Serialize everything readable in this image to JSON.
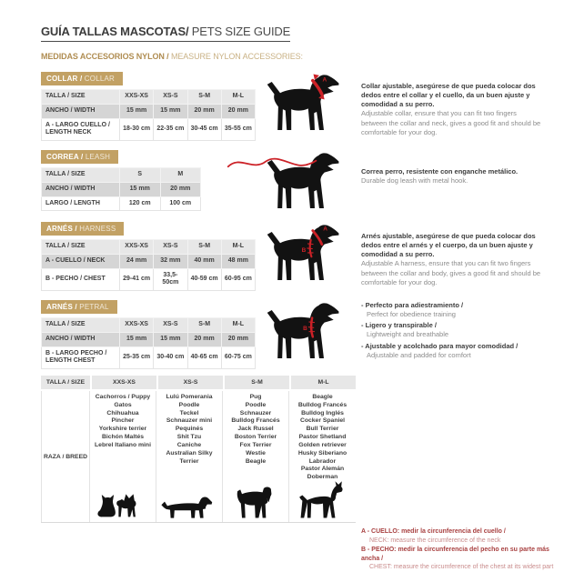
{
  "header": {
    "title_es": "GUÍA TALLAS MASCOTAS/",
    "title_en": " PETS SIZE GUIDE",
    "subtitle_es": "MEDIDAS ACCESORIOS NYLON / ",
    "subtitle_en": "MEASURE NYLON ACCESSORIES:"
  },
  "colors": {
    "gold": "#c2a164",
    "marker_red": "#cc2127",
    "note_red": "#a84040",
    "silhouette_black": "#121212"
  },
  "sections": [
    {
      "badge_es": "COLLAR / ",
      "badge_en": "COLLAR",
      "table": {
        "header": [
          "TALLA / SIZE",
          "XXS-XS",
          "XS-S",
          "S-M",
          "M-L"
        ],
        "rows": [
          {
            "label": "ANCHO / WIDTH",
            "values": [
              "15 mm",
              "15 mm",
              "20 mm",
              "20 mm"
            ]
          },
          {
            "label": "A - LARGO CUELLO / LENGTH NECK",
            "values": [
              "18-30 cm",
              "22-35 cm",
              "30-45 cm",
              "35-55 cm"
            ]
          }
        ]
      },
      "description_es": "Collar ajustable, asegúrese de que pueda colocar dos dedos entre el collar y el cuello, da un buen ajuste y comodidad a su perro.",
      "description_en": "Adjustable collar, ensure that you can fit two fingers between the collar and neck, gives a good fit and should be comfortable for your dog."
    },
    {
      "badge_es": "CORREA / ",
      "badge_en": "LEASH",
      "table": {
        "header": [
          "TALLA / SIZE",
          "S",
          "M"
        ],
        "rows": [
          {
            "label": "ANCHO / WIDTH",
            "values": [
              "15 mm",
              "20 mm"
            ]
          },
          {
            "label": "LARGO / LENGTH",
            "values": [
              "120 cm",
              "100 cm"
            ]
          }
        ]
      },
      "description_es": "Correa perro, resistente con enganche metálico.",
      "description_en": "Durable dog leash with metal hook."
    },
    {
      "badge_es": "ARNÉS / ",
      "badge_en": "HARNESS",
      "table": {
        "header": [
          "TALLA / SIZE",
          "XXS-XS",
          "XS-S",
          "S-M",
          "M-L"
        ],
        "rows": [
          {
            "label": "A - CUELLO / NECK",
            "values": [
              "24 mm",
              "32 mm",
              "40 mm",
              "48 mm"
            ]
          },
          {
            "label": "B - PECHO / CHEST",
            "values": [
              "29-41 cm",
              "33,5-50cm",
              "40-59 cm",
              "60-95 cm"
            ]
          }
        ]
      },
      "description_es": "Arnés ajustable, asegúrese de que pueda colocar dos dedos entre el arnés y el cuerpo, da un buen ajuste y comodidad a su perro.",
      "description_en": "Adjustable A harness, ensure that you can fit two fingers between the collar and body, gives a good fit and should be comfortable for your dog."
    },
    {
      "badge_es": "ARNÉS / ",
      "badge_en": "PETRAL",
      "table": {
        "header": [
          "TALLA / SIZE",
          "XXS-XS",
          "XS-S",
          "S-M",
          "M-L"
        ],
        "rows": [
          {
            "label": "ANCHO / WIDTH",
            "values": [
              "15 mm",
              "15 mm",
              "20 mm",
              "20 mm"
            ]
          },
          {
            "label": "B - LARGO PECHO / LENGTH CHEST",
            "values": [
              "25-35 cm",
              "30-40 cm",
              "40-65 cm",
              "60-75 cm"
            ]
          }
        ]
      },
      "bullets": [
        {
          "es": "- Perfecto para adiestramiento /",
          "en": "Perfect for obedience training"
        },
        {
          "es": "- Ligero y transpirable /",
          "en": "Lightweight and breathable"
        },
        {
          "es": "- Ajustable y acolchado para mayor comodidad /",
          "en": "Adjustable and padded for comfort"
        }
      ]
    }
  ],
  "breed_table": {
    "headers": [
      "TALLA / SIZE",
      "XXS-XS",
      "XS-S",
      "S-M",
      "M-L"
    ],
    "row_label": "RAZA / BREED",
    "columns": [
      [
        "Cachorros / Puppy",
        "Gatos",
        "Chihuahua",
        "Pincher",
        "Yorkshire terrier",
        "Bichón Maltés",
        "Lebrel Italiano mini"
      ],
      [
        "Lulú Pomerania",
        "Poodle",
        "Teckel",
        "Schnauzer mini",
        "Pequinés",
        "Shit Tzu",
        "Caniche",
        "Australian Silky Terrier"
      ],
      [
        "Pug",
        "Poodle",
        "Schnauzer",
        "Bulldog Francés",
        "Jack Russel",
        "Boston Terrier",
        "Fox Terrier",
        "Westie",
        "Beagle"
      ],
      [
        "Beagle",
        "Bulldog Francés",
        "Bulldog Inglés",
        "Cocker Spaniel",
        "Bull Terrier",
        "Pastor Shetland",
        "Golden retriever",
        "Husky Siberiano",
        "Labrador",
        "Pastor Alemán",
        "Doberman"
      ]
    ]
  },
  "notes": [
    {
      "es": "A - CUELLO: medir la circunferencia del cuello /",
      "en": "NECK: measure the circumference of the neck"
    },
    {
      "es": "B - PECHO: medir la circunferencia del pecho en su parte más ancha /",
      "en": "CHEST: measure the circumference of the chest at its widest part"
    }
  ],
  "dog_labels": {
    "collar_a": "A",
    "harness_a": "A",
    "harness_b": "B",
    "petral_b": "B"
  }
}
